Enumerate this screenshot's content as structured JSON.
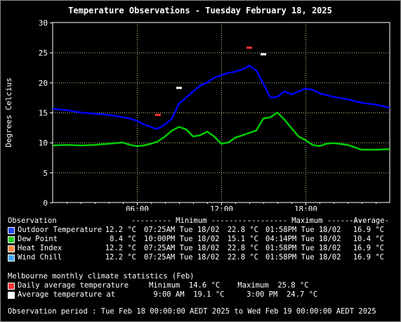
{
  "chart_data": {
    "type": "line",
    "title": "Temperature Observations - Tuesday February 18, 2025",
    "ylabel": "Degrees Celcius",
    "xlabel": "",
    "xlim": [
      0,
      24
    ],
    "ylim": [
      0,
      30
    ],
    "yticks": [
      0,
      5,
      10,
      15,
      20,
      25,
      30
    ],
    "xticks": [
      {
        "hour": 6,
        "label": "06:00"
      },
      {
        "hour": 12,
        "label": "12:00"
      },
      {
        "hour": 18,
        "label": "18:00"
      }
    ],
    "grid": true,
    "series": [
      {
        "name": "Outdoor Temperature",
        "color": "#0000ff",
        "x": [
          0,
          1,
          2,
          3,
          4,
          5,
          5.5,
          6,
          6.5,
          7,
          7.4,
          8,
          8.5,
          9,
          9.5,
          10,
          10.5,
          11,
          11.5,
          12,
          12.5,
          13,
          13.5,
          14,
          14.5,
          15,
          15.5,
          16,
          16.5,
          17,
          17.5,
          18,
          18.5,
          19,
          20,
          21,
          22,
          23,
          24
        ],
        "y": [
          15.6,
          15.4,
          15.0,
          14.8,
          14.6,
          14.2,
          14.0,
          13.6,
          13.0,
          12.6,
          12.2,
          13.0,
          14.0,
          16.5,
          17.5,
          18.5,
          19.5,
          20.0,
          20.8,
          21.2,
          21.6,
          21.8,
          22.2,
          22.8,
          22.0,
          19.8,
          17.5,
          17.6,
          18.5,
          18.0,
          18.5,
          19.0,
          18.8,
          18.2,
          17.6,
          17.2,
          16.6,
          16.3,
          15.8
        ]
      },
      {
        "name": "Dew Point",
        "color": "#00cc00",
        "x": [
          0,
          1,
          2,
          3,
          4,
          5,
          5.5,
          6,
          6.5,
          7,
          7.5,
          8,
          8.5,
          9,
          9.5,
          10,
          10.5,
          11,
          11.5,
          12,
          12.5,
          13,
          13.5,
          14,
          14.5,
          15,
          15.5,
          16,
          16.5,
          17,
          17.5,
          18,
          18.5,
          19,
          19.5,
          20,
          21,
          22,
          23,
          24
        ],
        "y": [
          9.5,
          9.6,
          9.5,
          9.6,
          9.8,
          10.0,
          9.6,
          9.4,
          9.5,
          9.8,
          10.2,
          11.0,
          12.0,
          12.6,
          12.2,
          11.0,
          11.2,
          11.8,
          11.0,
          9.8,
          10.0,
          10.8,
          11.2,
          11.6,
          12.0,
          14.0,
          14.2,
          15.0,
          13.8,
          12.4,
          11.0,
          10.4,
          9.6,
          9.4,
          9.8,
          9.9,
          9.6,
          8.8,
          8.8,
          8.9
        ]
      }
    ],
    "markers": [
      {
        "name": "Daily average temperature",
        "color": "#ff3333",
        "x": [
          7.5,
          14.0
        ],
        "y": [
          14.6,
          25.8
        ]
      },
      {
        "name": "Average temperature at",
        "color": "#ffffff",
        "x": [
          9.0,
          15.0
        ],
        "y": [
          19.1,
          24.7
        ]
      }
    ]
  },
  "stats": {
    "header": {
      "observation": "Observation",
      "minimum": "--------- Minimum ---------",
      "maximum": "--------- Maximum ---------",
      "average": "-Average-"
    },
    "rows": [
      {
        "name": "Outdoor Temperature",
        "color": "#2244ff",
        "min_val": "12.2 °C",
        "min_at": "07:25AM Tue 18/02",
        "max_val": "22.8 °C",
        "max_at": "01:58PM Tue 18/02",
        "avg": "16.9 °C"
      },
      {
        "name": "Dew Point",
        "color": "#22cc22",
        "min_val": "8.4 °C",
        "min_at": "10:00PM Tue 18/02",
        "max_val": "15.1 °C",
        "max_at": "04:14PM Tue 18/02",
        "avg": "10.4 °C"
      },
      {
        "name": "Heat Index",
        "color": "#ff8844",
        "min_val": "12.2 °C",
        "min_at": "07:25AM Tue 18/02",
        "max_val": "22.8 °C",
        "max_at": "01:58PM Tue 18/02",
        "avg": "16.9 °C"
      },
      {
        "name": "Wind Chill",
        "color": "#44aaff",
        "min_val": "12.2 °C",
        "min_at": "07:25AM Tue 18/02",
        "max_val": "22.8 °C",
        "max_at": "01:58PM Tue 18/02",
        "avg": "16.9 °C"
      }
    ]
  },
  "climate": {
    "title": "Melbourne monthly climate statistics (Feb)",
    "rows": [
      {
        "name": "Daily average temperature",
        "color": "#ff3333",
        "text": "Minimum  14.6 °C    Maximum  25.8 °C"
      },
      {
        "name": "Average temperature at",
        "color": "#ffffff",
        "text": " 9:00 AM  19.1 °C     3:00 PM  24.7 °C"
      }
    ]
  },
  "footer": {
    "period": "Observation period : Tue Feb 18 00:00:00 AEDT 2025 to Wed Feb 19 00:00:00 AEDT 2025"
  }
}
